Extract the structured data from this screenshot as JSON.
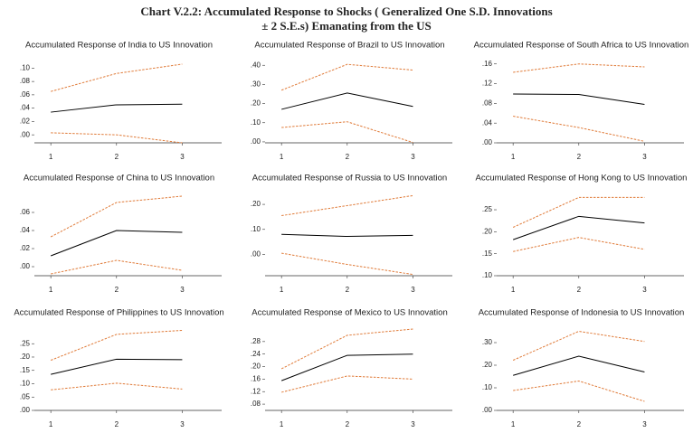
{
  "title": "Chart V.2.2: Accumulated Response to Shocks ( Generalized One S.D. Innovations",
  "subtitle": "± 2 S.E.s) Emanating from the US",
  "chart_data": [
    {
      "type": "line",
      "title": "Accumulated Response of India to US Innovation",
      "x": [
        1,
        2,
        3
      ],
      "xlim": [
        0.75,
        3.6
      ],
      "xticks": [
        1,
        2,
        3
      ],
      "ylim": [
        -0.012,
        0.11
      ],
      "yticks": [
        {
          "value": 0,
          "label": ".00"
        },
        {
          "value": 0.02,
          "label": ".02"
        },
        {
          "value": 0.04,
          "label": ".04"
        },
        {
          "value": 0.06,
          "label": ".06"
        },
        {
          "value": 0.08,
          "label": ".08"
        },
        {
          "value": 0.1,
          "label": ".10"
        }
      ],
      "series": [
        {
          "color": "#000000",
          "values": [
            0.034,
            0.045,
            0.046
          ]
        },
        {
          "color": "#e07b39",
          "dashed": true,
          "values": [
            0.065,
            0.092,
            0.106
          ]
        },
        {
          "color": "#e07b39",
          "dashed": true,
          "values": [
            0.003,
            0.0,
            -0.012
          ]
        }
      ]
    },
    {
      "type": "line",
      "title": "Accumulated Response of Brazil to US Innovation",
      "x": [
        1,
        2,
        3
      ],
      "xlim": [
        0.75,
        3.6
      ],
      "xticks": [
        1,
        2,
        3
      ],
      "ylim": [
        -0.005,
        0.42
      ],
      "yticks": [
        {
          "value": 0,
          "label": ".00"
        },
        {
          "value": 0.1,
          "label": ".10"
        },
        {
          "value": 0.2,
          "label": ".20"
        },
        {
          "value": 0.3,
          "label": ".30"
        },
        {
          "value": 0.4,
          "label": ".40"
        }
      ],
      "series": [
        {
          "color": "#000000",
          "values": [
            0.17,
            0.255,
            0.185
          ]
        },
        {
          "color": "#e07b39",
          "dashed": true,
          "values": [
            0.27,
            0.405,
            0.375
          ]
        },
        {
          "color": "#e07b39",
          "dashed": true,
          "values": [
            0.075,
            0.105,
            -0.003
          ]
        }
      ]
    },
    {
      "type": "line",
      "title": "Accumulated Response of South Africa to US Innovation",
      "x": [
        1,
        2,
        3
      ],
      "xlim": [
        0.75,
        3.6
      ],
      "xticks": [
        1,
        2,
        3
      ],
      "ylim": [
        0,
        0.165
      ],
      "yticks": [
        {
          "value": 0,
          "label": ".00"
        },
        {
          "value": 0.04,
          "label": ".04"
        },
        {
          "value": 0.08,
          "label": ".08"
        },
        {
          "value": 0.12,
          "label": ".12"
        },
        {
          "value": 0.16,
          "label": ".16"
        }
      ],
      "series": [
        {
          "color": "#000000",
          "values": [
            0.099,
            0.098,
            0.078
          ]
        },
        {
          "color": "#e07b39",
          "dashed": true,
          "values": [
            0.143,
            0.16,
            0.154
          ]
        },
        {
          "color": "#e07b39",
          "dashed": true,
          "values": [
            0.054,
            0.031,
            0.003
          ]
        }
      ]
    },
    {
      "type": "line",
      "title": "Accumulated Response of China to US Innovation",
      "x": [
        1,
        2,
        3
      ],
      "xlim": [
        0.75,
        3.6
      ],
      "xticks": [
        1,
        2,
        3
      ],
      "ylim": [
        -0.01,
        0.08
      ],
      "yticks": [
        {
          "value": 0,
          "label": ".00"
        },
        {
          "value": 0.02,
          "label": ".02"
        },
        {
          "value": 0.04,
          "label": ".04"
        },
        {
          "value": 0.06,
          "label": ".06"
        }
      ],
      "series": [
        {
          "color": "#000000",
          "values": [
            0.012,
            0.04,
            0.038
          ]
        },
        {
          "color": "#e07b39",
          "dashed": true,
          "values": [
            0.033,
            0.071,
            0.078
          ]
        },
        {
          "color": "#e07b39",
          "dashed": true,
          "values": [
            -0.008,
            0.007,
            -0.004
          ]
        }
      ]
    },
    {
      "type": "line",
      "title": "Accumulated Response of Russia to US Innovation",
      "x": [
        1,
        2,
        3
      ],
      "xlim": [
        0.75,
        3.6
      ],
      "xticks": [
        1,
        2,
        3
      ],
      "ylim": [
        -0.085,
        0.24
      ],
      "yticks": [
        {
          "value": 0,
          "label": ".00"
        },
        {
          "value": 0.1,
          "label": ".10"
        },
        {
          "value": 0.2,
          "label": ".20"
        }
      ],
      "series": [
        {
          "color": "#000000",
          "values": [
            0.08,
            0.072,
            0.076
          ]
        },
        {
          "color": "#e07b39",
          "dashed": true,
          "values": [
            0.155,
            0.195,
            0.235
          ]
        },
        {
          "color": "#e07b39",
          "dashed": true,
          "values": [
            0.005,
            -0.04,
            -0.08
          ]
        }
      ]
    },
    {
      "type": "line",
      "title": "Accumulated Response of Hong Kong to US Innovation",
      "x": [
        1,
        2,
        3
      ],
      "xlim": [
        0.75,
        3.6
      ],
      "xticks": [
        1,
        2,
        3
      ],
      "ylim": [
        0.1,
        0.285
      ],
      "yticks": [
        {
          "value": 0.1,
          "label": ".10"
        },
        {
          "value": 0.15,
          "label": ".15"
        },
        {
          "value": 0.2,
          "label": ".20"
        },
        {
          "value": 0.25,
          "label": ".25"
        }
      ],
      "series": [
        {
          "color": "#000000",
          "values": [
            0.182,
            0.235,
            0.22
          ]
        },
        {
          "color": "#e07b39",
          "dashed": true,
          "values": [
            0.21,
            0.278,
            0.278
          ]
        },
        {
          "color": "#e07b39",
          "dashed": true,
          "values": [
            0.155,
            0.187,
            0.16
          ]
        }
      ]
    },
    {
      "type": "line",
      "title": "Accumulated Response of Philippines to US Innovation",
      "x": [
        1,
        2,
        3
      ],
      "xlim": [
        0.75,
        3.6
      ],
      "xticks": [
        1,
        2,
        3
      ],
      "ylim": [
        0,
        0.305
      ],
      "yticks": [
        {
          "value": 0,
          "label": ".00"
        },
        {
          "value": 0.05,
          "label": ".05"
        },
        {
          "value": 0.1,
          "label": ".10"
        },
        {
          "value": 0.15,
          "label": ".15"
        },
        {
          "value": 0.2,
          "label": ".20"
        },
        {
          "value": 0.25,
          "label": ".25"
        }
      ],
      "series": [
        {
          "color": "#000000",
          "values": [
            0.135,
            0.192,
            0.19
          ]
        },
        {
          "color": "#e07b39",
          "dashed": true,
          "values": [
            0.188,
            0.285,
            0.3
          ]
        },
        {
          "color": "#e07b39",
          "dashed": true,
          "values": [
            0.077,
            0.102,
            0.08
          ]
        }
      ]
    },
    {
      "type": "line",
      "title": "Accumulated Response of Mexico to US Innovation",
      "x": [
        1,
        2,
        3
      ],
      "xlim": [
        0.75,
        3.6
      ],
      "xticks": [
        1,
        2,
        3
      ],
      "ylim": [
        0.06,
        0.32
      ],
      "yticks": [
        {
          "value": 0.08,
          "label": ".08"
        },
        {
          "value": 0.12,
          "label": ".12"
        },
        {
          "value": 0.16,
          "label": ".16"
        },
        {
          "value": 0.2,
          "label": ".20"
        },
        {
          "value": 0.24,
          "label": ".24"
        },
        {
          "value": 0.28,
          "label": ".28"
        }
      ],
      "series": [
        {
          "color": "#000000",
          "values": [
            0.155,
            0.236,
            0.24
          ]
        },
        {
          "color": "#e07b39",
          "dashed": true,
          "values": [
            0.193,
            0.3,
            0.32
          ]
        },
        {
          "color": "#e07b39",
          "dashed": true,
          "values": [
            0.118,
            0.17,
            0.16
          ]
        }
      ]
    },
    {
      "type": "line",
      "title": "Accumulated Response of Indonesia to US Innovation",
      "x": [
        1,
        2,
        3
      ],
      "xlim": [
        0.75,
        3.6
      ],
      "xticks": [
        1,
        2,
        3
      ],
      "ylim": [
        0,
        0.36
      ],
      "yticks": [
        {
          "value": 0,
          "label": ".00"
        },
        {
          "value": 0.1,
          "label": ".10"
        },
        {
          "value": 0.2,
          "label": ".20"
        },
        {
          "value": 0.3,
          "label": ".30"
        }
      ],
      "series": [
        {
          "color": "#000000",
          "values": [
            0.155,
            0.24,
            0.17
          ]
        },
        {
          "color": "#e07b39",
          "dashed": true,
          "values": [
            0.222,
            0.35,
            0.305
          ]
        },
        {
          "color": "#e07b39",
          "dashed": true,
          "values": [
            0.088,
            0.13,
            0.04
          ]
        }
      ]
    }
  ]
}
